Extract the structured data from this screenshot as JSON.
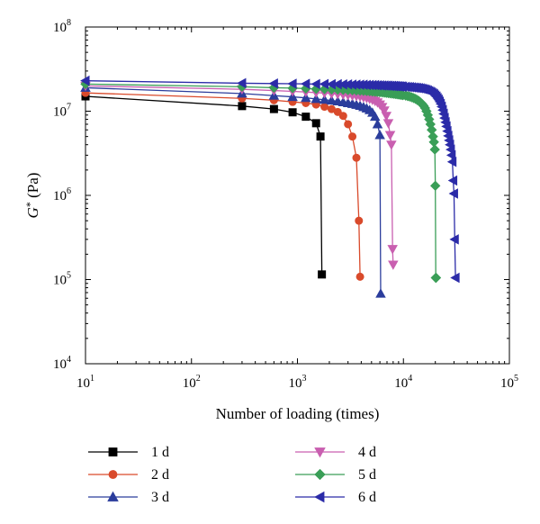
{
  "chart_data": {
    "type": "line",
    "title": "",
    "xlabel": "Number of loading (times)",
    "ylabel_main": "G",
    "ylabel_sup": "*",
    "ylabel_unit": " (Pa)",
    "xscale": "log",
    "yscale": "log",
    "xlim": [
      10,
      100000
    ],
    "ylim": [
      10000,
      100000000
    ],
    "x_ticks": [
      {
        "base": "10",
        "exp": "1"
      },
      {
        "base": "10",
        "exp": "2"
      },
      {
        "base": "10",
        "exp": "3"
      },
      {
        "base": "10",
        "exp": "4"
      },
      {
        "base": "10",
        "exp": "5"
      }
    ],
    "y_ticks": [
      {
        "base": "10",
        "exp": "4"
      },
      {
        "base": "10",
        "exp": "5"
      },
      {
        "base": "10",
        "exp": "6"
      },
      {
        "base": "10",
        "exp": "7"
      },
      {
        "base": "10",
        "exp": "8"
      }
    ],
    "grid": false,
    "legend_position": "bottom",
    "series": [
      {
        "name": "1 d",
        "color": "#000000",
        "marker": "square",
        "x": [
          10,
          300,
          600,
          900,
          1200,
          1500,
          1650,
          1700
        ],
        "y": [
          15000000,
          11500000,
          10600000,
          9700000,
          8600000,
          7200000,
          5000000,
          115000
        ]
      },
      {
        "name": "2 d",
        "color": "#d94a2b",
        "marker": "circle",
        "x": [
          10,
          300,
          600,
          900,
          1200,
          1500,
          1800,
          2100,
          2400,
          2700,
          3000,
          3300,
          3600,
          3800,
          3900
        ],
        "y": [
          16500000,
          14200000,
          13500000,
          12900000,
          12500000,
          12000000,
          11300000,
          10600000,
          9800000,
          8800000,
          7000000,
          5000000,
          2800000,
          500000,
          108000
        ]
      },
      {
        "name": "3 d",
        "color": "#2b3d9c",
        "marker": "triangle-up",
        "x": [
          10,
          300,
          600,
          900,
          1200,
          1500,
          1800,
          2100,
          2400,
          2700,
          3000,
          3300,
          3600,
          3900,
          4200,
          4500,
          4800,
          5100,
          5400,
          5700,
          6000,
          6100
        ],
        "y": [
          19000000,
          16200000,
          15300000,
          14800000,
          14400000,
          14000000,
          13700000,
          13400000,
          13100000,
          12800000,
          12500000,
          12200000,
          11900000,
          11600000,
          11200000,
          10800000,
          10300000,
          9600000,
          8600000,
          7000000,
          5200000,
          68000
        ]
      },
      {
        "name": "4 d",
        "color": "#c95fb0",
        "marker": "triangle-down",
        "x": [
          10,
          300,
          600,
          900,
          1200,
          1500,
          1800,
          2100,
          2400,
          2700,
          3000,
          3300,
          3600,
          3900,
          4200,
          4500,
          4800,
          5100,
          5400,
          5700,
          6000,
          6300,
          6600,
          6900,
          7200,
          7500,
          7700,
          7900,
          8000
        ],
        "y": [
          20000000,
          18200000,
          17600000,
          17200000,
          16900000,
          16600000,
          16400000,
          16100000,
          15900000,
          15700000,
          15500000,
          15300000,
          15100000,
          14900000,
          14600000,
          14300000,
          14000000,
          13600000,
          13200000,
          12700000,
          12000000,
          11200000,
          10200000,
          8800000,
          7200000,
          5200000,
          4000000,
          230000,
          150000
        ]
      },
      {
        "name": "5 d",
        "color": "#3a9e57",
        "marker": "diamond",
        "x": [
          10,
          300,
          600,
          900,
          1200,
          1500,
          1800,
          2100,
          2400,
          2700,
          3000,
          3300,
          3600,
          3900,
          4200,
          4500,
          4800,
          5100,
          5400,
          5700,
          6000,
          6300,
          6600,
          6900,
          7200,
          7500,
          7800,
          8100,
          8400,
          8700,
          9000,
          9300,
          9600,
          9900,
          10500,
          11000,
          11500,
          12000,
          12500,
          13000,
          13500,
          14000,
          14500,
          15000,
          15500,
          16000,
          16500,
          17000,
          17500,
          18000,
          18500,
          19000,
          19400,
          19800,
          20000,
          20200,
          20300
        ],
        "y": [
          21000000,
          19500000,
          19000000,
          18800000,
          18600000,
          18400000,
          18300000,
          18100000,
          18000000,
          17900000,
          17800000,
          17700000,
          17600000,
          17500000,
          17400000,
          17300000,
          17200000,
          17100000,
          17000000,
          16900000,
          16800000,
          16700000,
          16600000,
          16500000,
          16400000,
          16300000,
          16200000,
          16100000,
          16000000,
          15900000,
          15800000,
          15700000,
          15600000,
          15500000,
          15300000,
          15100000,
          14900000,
          14600000,
          14300000,
          14000000,
          13600000,
          13200000,
          12700000,
          12200000,
          11600000,
          10900000,
          10000000,
          9000000,
          8000000,
          7000000,
          6000000,
          5000000,
          4300000,
          3500000,
          1300000,
          105000,
          105000
        ]
      },
      {
        "name": "6 d",
        "color": "#2b2ba8",
        "marker": "triangle-left",
        "x": [
          10,
          300,
          600,
          900,
          1200,
          1500,
          1800,
          2100,
          2400,
          2700,
          3000,
          3300,
          3600,
          3900,
          4200,
          4500,
          4800,
          5100,
          5400,
          5700,
          6000,
          6300,
          6600,
          6900,
          7200,
          7500,
          7800,
          8100,
          8400,
          8700,
          9000,
          9300,
          9600,
          9900,
          10500,
          11000,
          11500,
          12000,
          12500,
          13000,
          13500,
          14000,
          14500,
          15000,
          15500,
          16000,
          16500,
          17000,
          17500,
          18000,
          18500,
          19000,
          19500,
          20000,
          20500,
          21000,
          21500,
          22000,
          22500,
          23000,
          23500,
          24000,
          24500,
          25000,
          25500,
          26000,
          26500,
          27000,
          27500,
          28000,
          28500,
          29000,
          29500,
          30000,
          30500,
          31000
        ],
        "y": [
          23000000,
          21500000,
          21300000,
          21200000,
          21100000,
          21000000,
          21000000,
          20900000,
          20900000,
          20800000,
          20800000,
          20700000,
          20700000,
          20600000,
          20600000,
          20500000,
          20500000,
          20400000,
          20400000,
          20300000,
          20300000,
          20200000,
          20200000,
          20100000,
          20100000,
          20000000,
          20000000,
          19900000,
          19900000,
          19800000,
          19800000,
          19700000,
          19700000,
          19600000,
          19500000,
          19400000,
          19300000,
          19200000,
          19100000,
          19000000,
          18900000,
          18800000,
          18700000,
          18500000,
          18300000,
          18100000,
          17900000,
          17600000,
          17300000,
          17000000,
          16700000,
          16300000,
          15900000,
          15400000,
          14900000,
          14300000,
          13700000,
          13000000,
          12200000,
          11300000,
          10300000,
          9300000,
          8300000,
          7400000,
          6600000,
          5800000,
          5100000,
          4500000,
          4000000,
          3500000,
          3000000,
          2500000,
          1500000,
          1050000,
          300000,
          105000
        ]
      }
    ]
  }
}
